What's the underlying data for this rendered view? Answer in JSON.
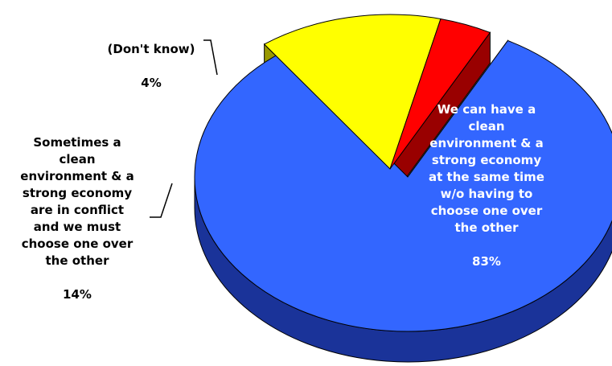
{
  "chart_data": {
    "type": "pie",
    "title": "",
    "three_d": true,
    "slices": [
      {
        "label": "We can have a\nclean\nenvironment & a\nstrong economy\nat the same time\nw/o having to\nchoose one over\nthe other",
        "value": 83,
        "value_label": "83%",
        "color": "#3366FF",
        "side_color": "#1A3399"
      },
      {
        "label": "Sometimes a\nclean\nenvironment & a\nstrong economy\nare in conflict\nand we must\nchoose one over\nthe other",
        "value": 14,
        "value_label": "14%",
        "color": "#FFFF00",
        "side_color": "#999900"
      },
      {
        "label": "(Don't know)",
        "value": 4,
        "value_label": "4%",
        "color": "#FF0000",
        "side_color": "#990000"
      }
    ],
    "legend": "none"
  }
}
